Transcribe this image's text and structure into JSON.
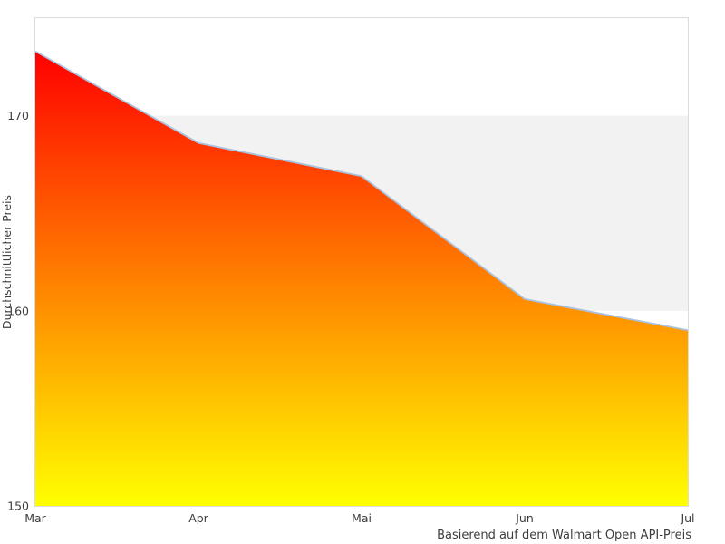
{
  "page": {
    "background": "#ffffff"
  },
  "chart_data": {
    "type": "area",
    "title": "",
    "categories": [
      "Mar",
      "Apr",
      "Mai",
      "Jun",
      "Jul"
    ],
    "values": [
      173.3,
      168.6,
      166.9,
      160.6,
      159.0
    ],
    "series": [
      {
        "name": "Durchschnittlicher Preis",
        "values": [
          173.3,
          168.6,
          166.9,
          160.6,
          159.0
        ]
      }
    ],
    "xlabel": "",
    "ylabel": "Durchschnittlicher Preis",
    "caption": "Basierend auf dem Walmart Open API-Preis",
    "ylim": [
      150,
      175
    ],
    "yticks": [
      150,
      160,
      170
    ],
    "grid": "alternating-band",
    "band_between": [
      160,
      170
    ],
    "legend_position": "none",
    "colors": {
      "band": "#f2f2f2",
      "line": "#a9c2de",
      "plot_border": "#dcdcdc",
      "text": "#3d3d3d",
      "gradient_top": "#ff0000",
      "gradient_bottom": "#ffff00"
    }
  }
}
